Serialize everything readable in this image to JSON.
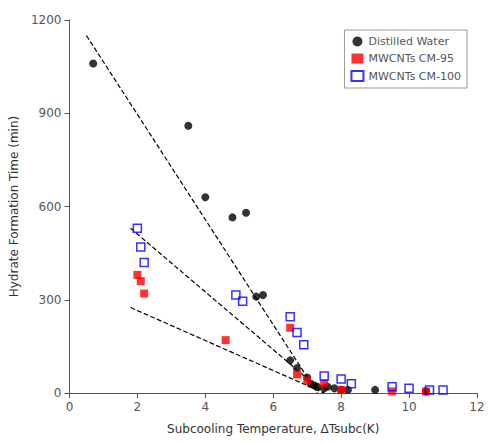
{
  "chart_data": {
    "type": "scatter",
    "xlabel": "Subcooling Temperature, ΔTsubc(K)",
    "ylabel": "Hydrate Formation Time (min)",
    "xlim": [
      0,
      12
    ],
    "xticks": [
      0,
      2,
      4,
      6,
      8,
      10,
      12
    ],
    "ylim": [
      0,
      1200
    ],
    "yticks": [
      0,
      300,
      600,
      900,
      1200
    ],
    "grid": false,
    "legend": "upper right",
    "series": [
      {
        "type": "line",
        "color": "black",
        "line_style": "dashed",
        "x": [
          0.5,
          7.3
        ],
        "values": [
          1150,
          0
        ]
      },
      {
        "type": "line",
        "color": "black",
        "line_style": "dashed",
        "x": [
          1.8,
          7.5
        ],
        "values": [
          530,
          0
        ]
      },
      {
        "type": "line",
        "color": "black",
        "line_style": "dashed",
        "x": [
          1.8,
          7.5
        ],
        "values": [
          275,
          0
        ]
      },
      {
        "type": "scatter",
        "name": "Distilled Water",
        "color": "black",
        "marker": "circle",
        "x": [
          0.7,
          3.5,
          4.0,
          4.8,
          5.2,
          5.5,
          5.7,
          6.5,
          6.7,
          7.0,
          7.1,
          7.2,
          7.3,
          7.5,
          7.6,
          7.8,
          8.0,
          8.2,
          9.0,
          10.5
        ],
        "values": [
          1060,
          860,
          630,
          565,
          580,
          310,
          315,
          105,
          80,
          50,
          30,
          25,
          20,
          15,
          20,
          15,
          10,
          10,
          10,
          5
        ]
      },
      {
        "type": "scatter",
        "name": "MWCNTs CM-95",
        "color": "red",
        "marker": "square",
        "x": [
          2.0,
          2.1,
          2.2,
          4.6,
          6.5,
          6.7,
          7.0,
          7.5,
          8.0,
          9.5,
          10.5
        ],
        "values": [
          380,
          360,
          320,
          170,
          210,
          60,
          40,
          30,
          10,
          5,
          5
        ]
      },
      {
        "type": "scatter",
        "name": "MWCNTs CM-100",
        "color": "blue",
        "marker": "open_square",
        "x": [
          2.0,
          2.1,
          2.2,
          4.9,
          5.1,
          6.5,
          6.7,
          6.9,
          7.5,
          8.0,
          8.3,
          9.5,
          10.0,
          10.6,
          11.0
        ],
        "values": [
          530,
          470,
          420,
          315,
          295,
          245,
          195,
          155,
          55,
          45,
          30,
          20,
          15,
          10,
          10
        ]
      }
    ]
  }
}
